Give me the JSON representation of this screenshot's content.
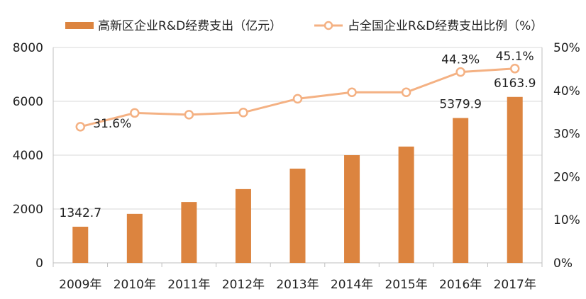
{
  "chart_data": {
    "type": "bar+line",
    "categories": [
      "2009年",
      "2010年",
      "2011年",
      "2012年",
      "2013年",
      "2014年",
      "2015年",
      "2016年",
      "2017年"
    ],
    "series": [
      {
        "name": "高新区企业R&D经费支出（亿元）",
        "type": "bar",
        "axis": "left",
        "color": "#DC843F",
        "values": [
          1342.7,
          1820,
          2260,
          2740,
          3500,
          4000,
          4320,
          5379.9,
          6163.9
        ]
      },
      {
        "name": "占全国企业R&D经费支出比例（%）",
        "type": "line",
        "axis": "right",
        "color": "#F4B183",
        "values": [
          31.6,
          34.8,
          34.4,
          34.9,
          38.1,
          39.6,
          39.6,
          44.3,
          45.1
        ]
      }
    ],
    "data_labels": {
      "bar": [
        {
          "index": 0,
          "text": "1342.7"
        },
        {
          "index": 7,
          "text": "5379.9"
        },
        {
          "index": 8,
          "text": "6163.9"
        }
      ],
      "line": [
        {
          "index": 0,
          "text": "31.6%"
        },
        {
          "index": 7,
          "text": "44.3%"
        },
        {
          "index": 8,
          "text": "45.1%"
        }
      ]
    },
    "y_left": {
      "min": 0,
      "max": 8000,
      "ticks": [
        "0",
        "2000",
        "4000",
        "6000",
        "8000"
      ]
    },
    "y_right": {
      "min": 0,
      "max": 50,
      "ticks": [
        "0%",
        "10%",
        "20%",
        "30%",
        "40%",
        "50%"
      ]
    },
    "grid": true,
    "legend_position": "top"
  }
}
